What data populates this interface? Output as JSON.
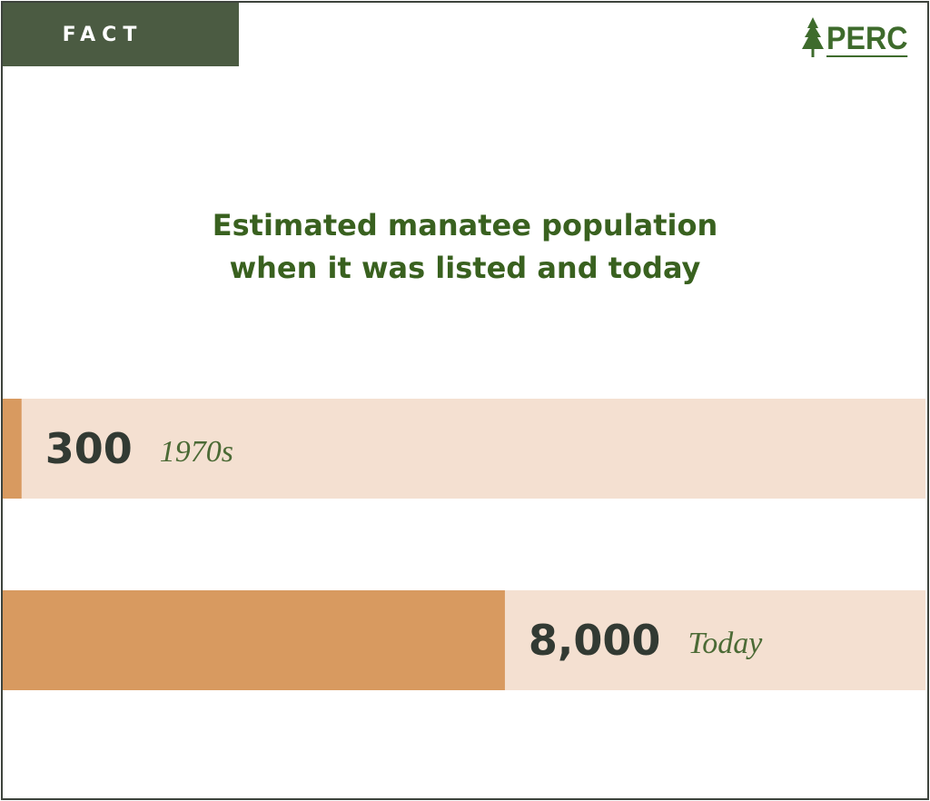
{
  "tag": "FACT",
  "logo": {
    "text": "PERC",
    "icon": "pine-tree-icon"
  },
  "colors": {
    "accent": "#4b5b42",
    "title": "#39611f",
    "bar": "#d89a60",
    "track": "#f4e0d1",
    "value": "#323a33",
    "category": "#4b6a35"
  },
  "chart_data": {
    "type": "bar",
    "orientation": "horizontal",
    "title": "Estimated manatee population when it was listed and today",
    "title_lines": [
      "Estimated manatee population",
      "when it was listed and today"
    ],
    "categories": [
      "1970s",
      "Today"
    ],
    "values": [
      300,
      8000
    ],
    "value_labels": [
      "300",
      "8,000"
    ],
    "xlim": [
      0,
      14700
    ],
    "grid": false,
    "legend": "none"
  }
}
